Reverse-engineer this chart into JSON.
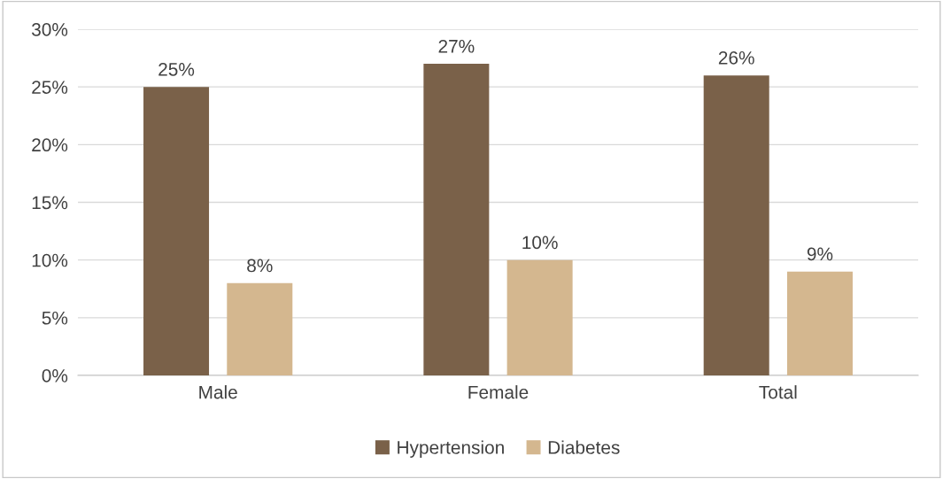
{
  "chart_data": {
    "type": "bar",
    "categories": [
      "Male",
      "Female",
      "Total"
    ],
    "series": [
      {
        "name": "Hypertension",
        "color": "#7a6149",
        "values": [
          25,
          27,
          26
        ],
        "value_labels": [
          "25%",
          "27%",
          "26%"
        ]
      },
      {
        "name": "Diabetes",
        "color": "#d4b78f",
        "values": [
          8,
          10,
          9
        ],
        "value_labels": [
          "8%",
          "10%",
          "9%"
        ]
      }
    ],
    "ylim": [
      0,
      30
    ],
    "yticks": [
      {
        "value": 0,
        "label": "0%"
      },
      {
        "value": 5,
        "label": "5%"
      },
      {
        "value": 10,
        "label": "10%"
      },
      {
        "value": 15,
        "label": "15%"
      },
      {
        "value": 20,
        "label": "20%"
      },
      {
        "value": 25,
        "label": "25%"
      },
      {
        "value": 30,
        "label": "30%"
      }
    ],
    "grid": "y",
    "legend": "bottom"
  }
}
